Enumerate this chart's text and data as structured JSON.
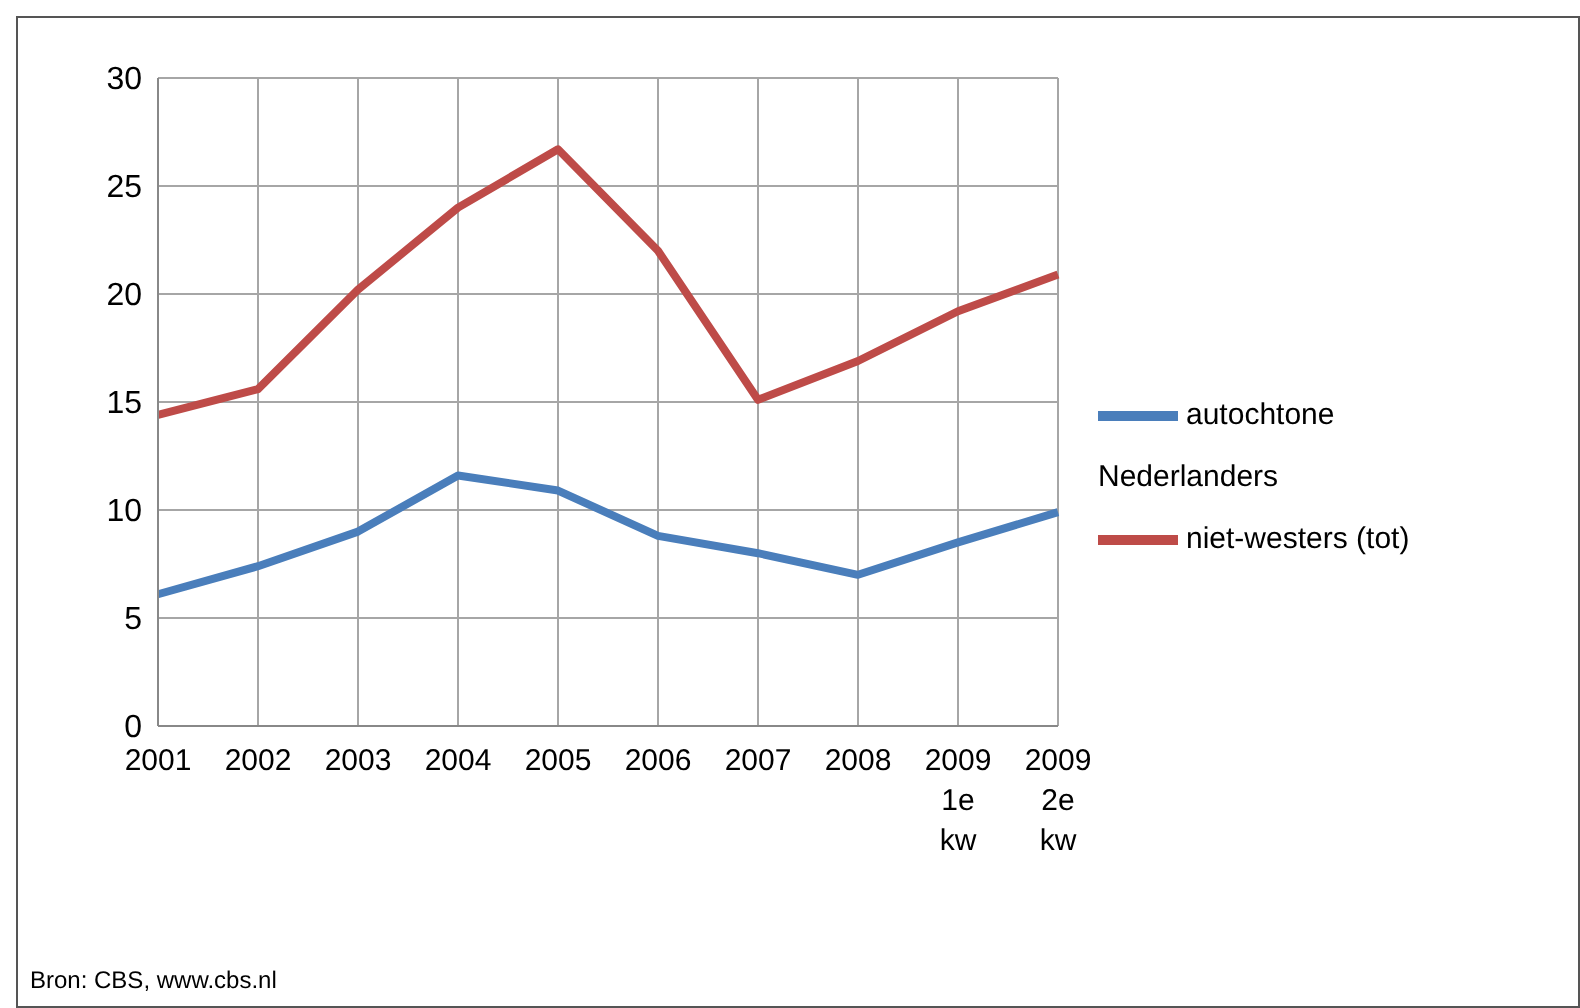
{
  "chart_data": {
    "type": "line",
    "categories": [
      "2001",
      "2002",
      "2003",
      "2004",
      "2005",
      "2006",
      "2007",
      "2008",
      "2009\n1e\nkw",
      "2009\n2e\nkw"
    ],
    "series": [
      {
        "name": "autochtone Nederlanders",
        "color": "#4a7ebb",
        "values": [
          6.1,
          7.4,
          9.0,
          11.6,
          10.9,
          8.8,
          8.0,
          7.0,
          8.5,
          9.9
        ]
      },
      {
        "name": "niet-westers (tot)",
        "color": "#be4b48",
        "values": [
          14.4,
          15.6,
          20.2,
          24.0,
          26.7,
          22.0,
          15.1,
          16.9,
          19.2,
          20.9
        ]
      }
    ],
    "ylim": [
      0,
      30
    ],
    "yticks": [
      0,
      5,
      10,
      15,
      20,
      25,
      30
    ],
    "grid": true,
    "legend": "right",
    "marker": "none",
    "line_style": "solid",
    "annotations": [
      "Bron: CBS, www.cbs.nl"
    ]
  }
}
